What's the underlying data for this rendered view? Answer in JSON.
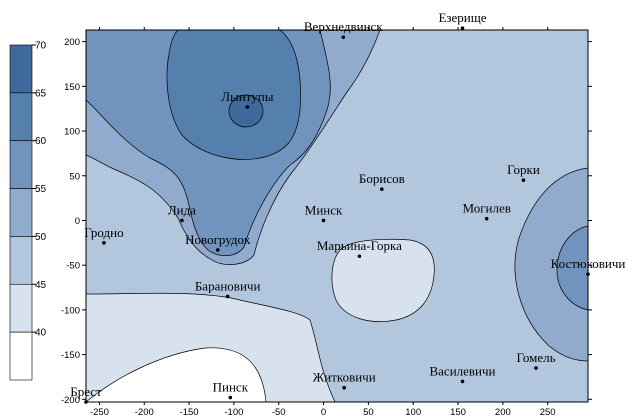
{
  "chart_data": {
    "type": "contour",
    "title": "",
    "xlabel": "",
    "ylabel": "",
    "xlim": [
      -265,
      295
    ],
    "ylim": [
      -203,
      213
    ],
    "x_ticks": [
      -250,
      -200,
      -150,
      -100,
      -50,
      0,
      50,
      100,
      150,
      200,
      250
    ],
    "y_ticks": [
      -200,
      -150,
      -100,
      -50,
      0,
      50,
      100,
      150,
      200
    ],
    "contour_levels": [
      40,
      45,
      50,
      55,
      60,
      65,
      70
    ],
    "legend": {
      "placement": "left",
      "bands": [
        {
          "from": 70,
          "to": 75,
          "color": "#3e6a9b"
        },
        {
          "from": 65,
          "to": 70,
          "color": "#5580ad"
        },
        {
          "from": 60,
          "to": 65,
          "color": "#7194be"
        },
        {
          "from": 55,
          "to": 60,
          "color": "#90abcd"
        },
        {
          "from": 50,
          "to": 55,
          "color": "#b2c6dd"
        },
        {
          "from": 45,
          "to": 50,
          "color": "#d8e2ee"
        },
        {
          "from": 40,
          "to": 45,
          "color": "#ffffff"
        }
      ]
    },
    "points": [
      {
        "name": "Верхнедвинск",
        "x": 22,
        "y": 205
      },
      {
        "name": "Езерище",
        "x": 155,
        "y": 215
      },
      {
        "name": "Лынтупы",
        "x": -85,
        "y": 127
      },
      {
        "name": "Борисов",
        "x": 65,
        "y": 35
      },
      {
        "name": "Горки",
        "x": 223,
        "y": 45
      },
      {
        "name": "Лида",
        "x": -158,
        "y": 0
      },
      {
        "name": "Минск",
        "x": 0,
        "y": 0
      },
      {
        "name": "Могилев",
        "x": 182,
        "y": 2
      },
      {
        "name": "Гродно",
        "x": -245,
        "y": -25
      },
      {
        "name": "Новогрудок",
        "x": -118,
        "y": -33
      },
      {
        "name": "Марьина-Горка",
        "x": 40,
        "y": -40
      },
      {
        "name": "Костюковичи",
        "x": 295,
        "y": -60
      },
      {
        "name": "Барановичи",
        "x": -107,
        "y": -85
      },
      {
        "name": "Гомель",
        "x": 237,
        "y": -165
      },
      {
        "name": "Василевичи",
        "x": 155,
        "y": -180
      },
      {
        "name": "Житковичи",
        "x": 23,
        "y": -187
      },
      {
        "name": "Брест",
        "x": -265,
        "y": -203
      },
      {
        "name": "Пинск",
        "x": -104,
        "y": -198
      }
    ]
  }
}
